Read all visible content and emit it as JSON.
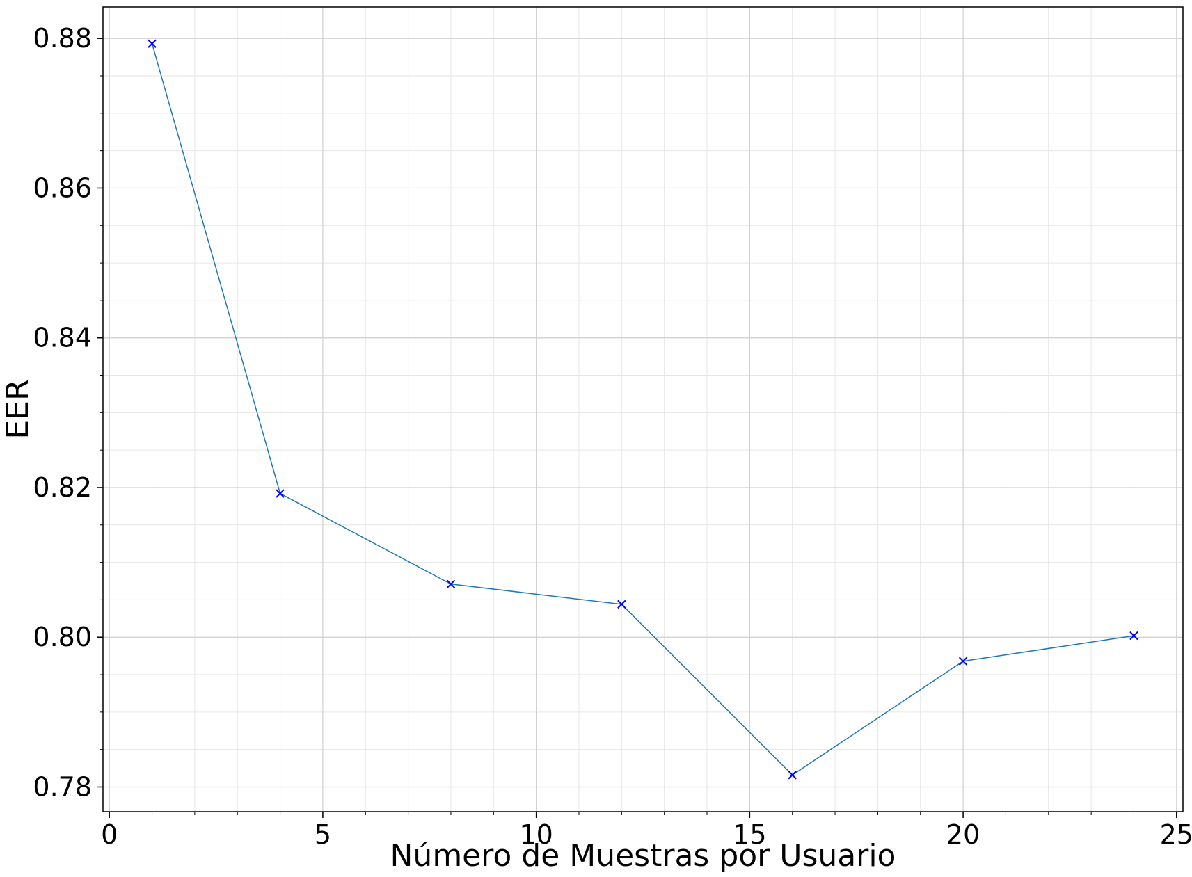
{
  "chart_data": {
    "type": "line",
    "xlabel": "Número de Muestras por Usuario",
    "ylabel": "EER",
    "xlim": [
      -0.15,
      25.15
    ],
    "ylim": [
      0.7767,
      0.8842
    ],
    "x_ticks": [
      0,
      5,
      10,
      15,
      20,
      25
    ],
    "x_tick_labels": [
      "0",
      "5",
      "10",
      "15",
      "20",
      "25"
    ],
    "y_ticks": [
      0.78,
      0.8,
      0.82,
      0.84,
      0.86,
      0.88
    ],
    "y_tick_labels": [
      "0.78",
      "0.80",
      "0.82",
      "0.84",
      "0.86",
      "0.88"
    ],
    "x_minor_step": 1,
    "y_minor_step": 0.005,
    "grid": true,
    "series": [
      {
        "x": [
          1,
          4,
          8,
          12,
          16,
          20,
          24
        ],
        "y": [
          0.8793,
          0.8192,
          0.8071,
          0.8044,
          0.7816,
          0.7968,
          0.8002
        ],
        "line_color": "#1f77b4",
        "marker": "x",
        "marker_color": "#0000ff"
      }
    ]
  }
}
